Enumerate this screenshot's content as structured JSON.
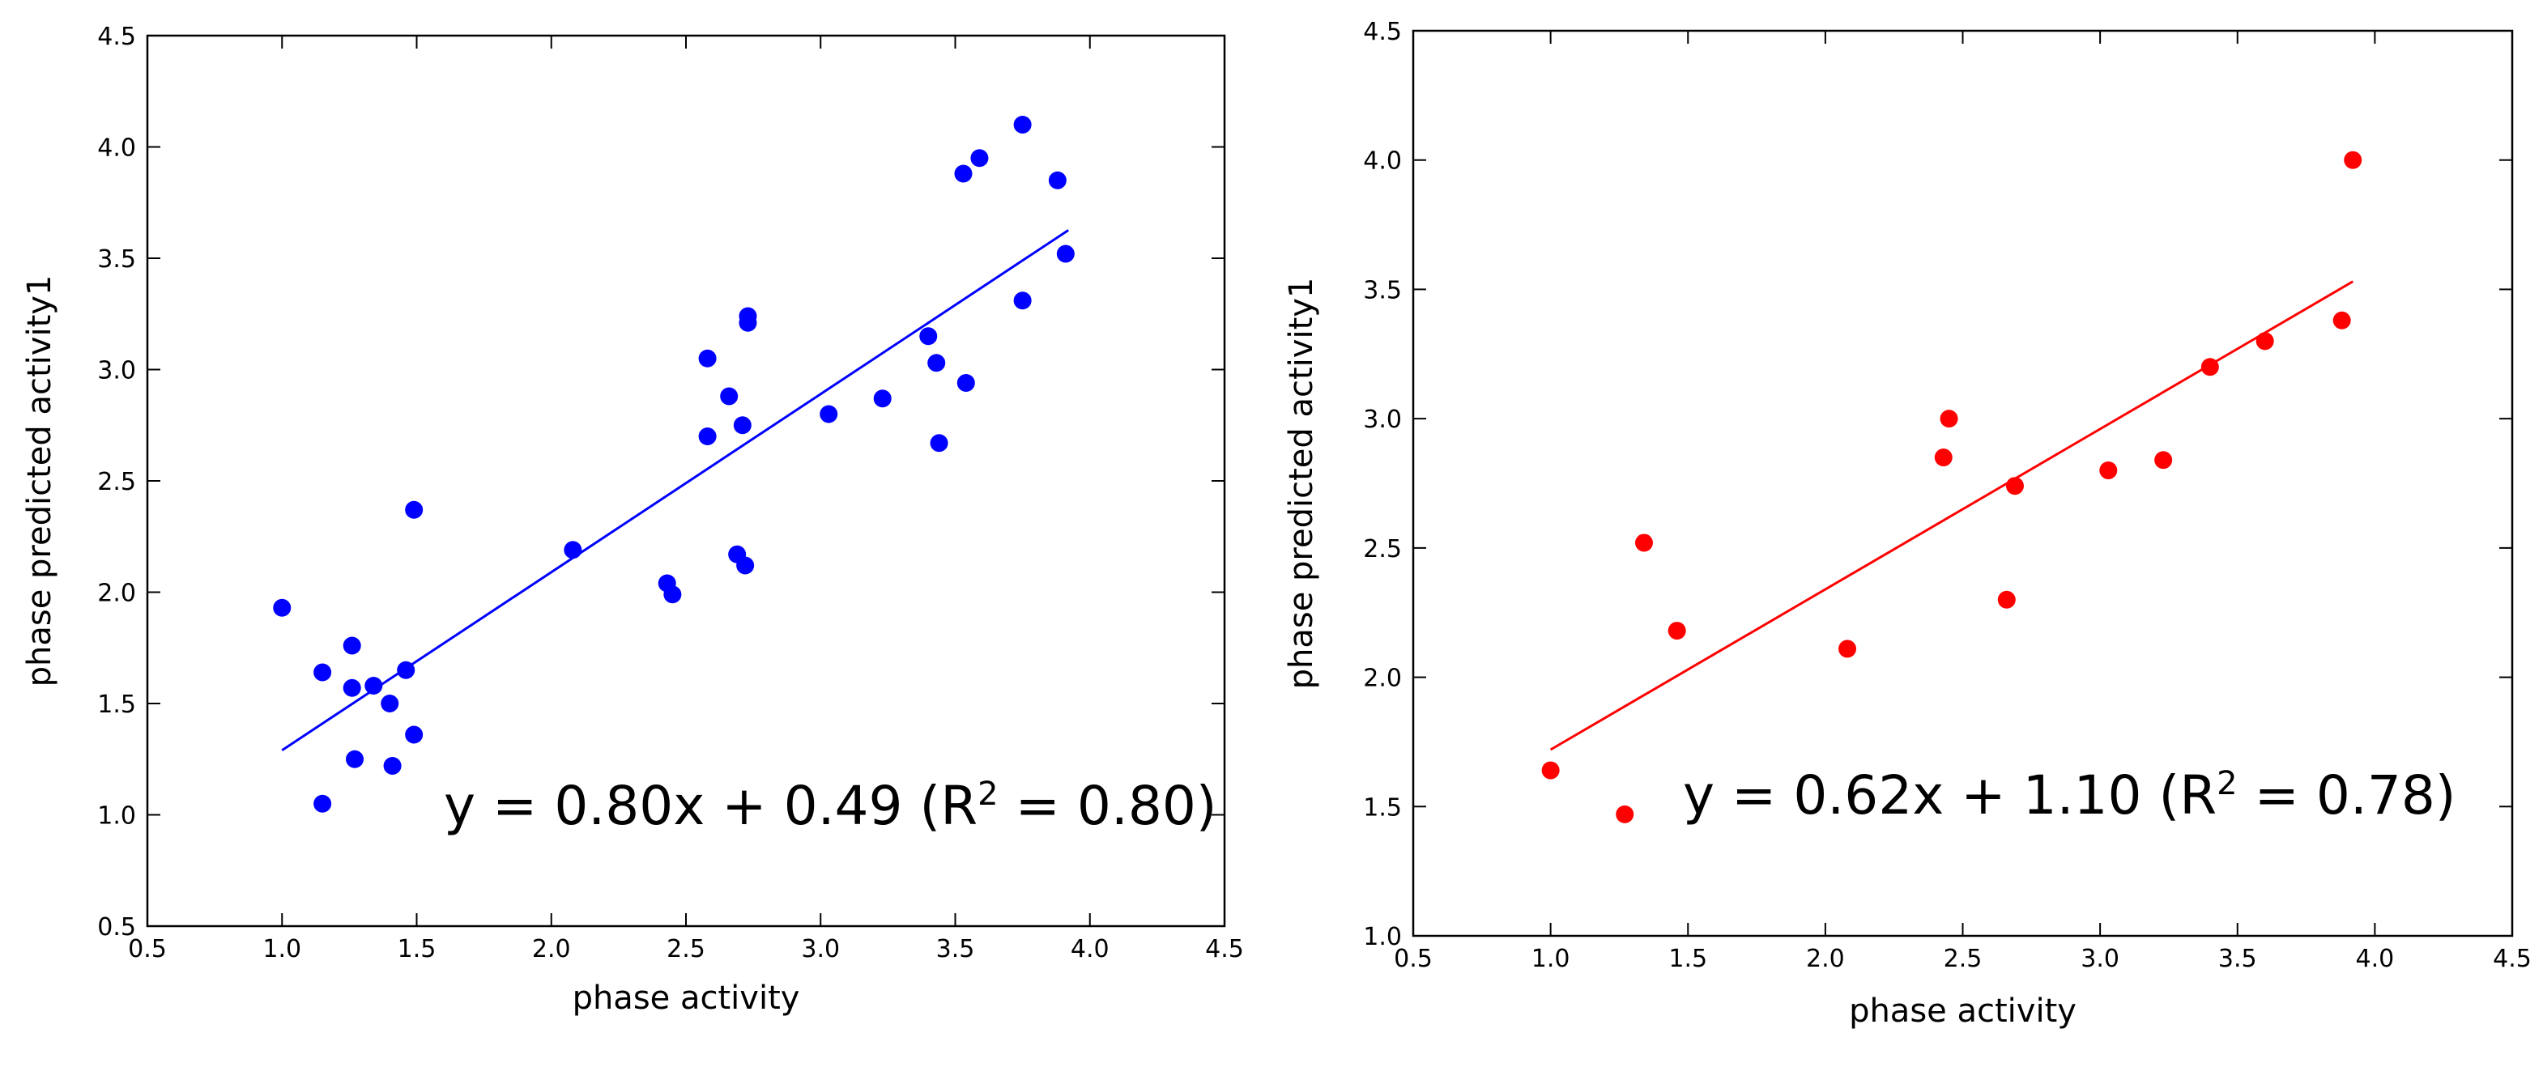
{
  "chart_data": [
    {
      "type": "scatter",
      "xlabel": "phase activity",
      "ylabel": "phase predicted activity1",
      "xlim": [
        0.5,
        4.5
      ],
      "ylim": [
        0.5,
        4.5
      ],
      "xticks": [
        "0.5",
        "1.0",
        "1.5",
        "2.0",
        "2.5",
        "3.0",
        "3.5",
        "4.0",
        "4.5"
      ],
      "yticks": [
        "0.5",
        "1.0",
        "1.5",
        "2.0",
        "2.5",
        "3.0",
        "3.5",
        "4.0",
        "4.5"
      ],
      "color": "#0000ff",
      "points": [
        [
          1.0,
          1.93
        ],
        [
          1.15,
          1.64
        ],
        [
          1.15,
          1.05
        ],
        [
          1.26,
          1.76
        ],
        [
          1.26,
          1.57
        ],
        [
          1.27,
          1.25
        ],
        [
          1.34,
          1.58
        ],
        [
          1.4,
          1.5
        ],
        [
          1.41,
          1.22
        ],
        [
          1.46,
          1.65
        ],
        [
          1.49,
          1.36
        ],
        [
          1.49,
          2.37
        ],
        [
          2.08,
          2.19
        ],
        [
          2.43,
          2.04
        ],
        [
          2.45,
          1.99
        ],
        [
          2.58,
          3.05
        ],
        [
          2.58,
          2.7
        ],
        [
          2.66,
          2.88
        ],
        [
          2.69,
          2.17
        ],
        [
          2.71,
          2.75
        ],
        [
          2.72,
          2.12
        ],
        [
          2.73,
          3.21
        ],
        [
          2.73,
          3.24
        ],
        [
          3.03,
          2.8
        ],
        [
          3.23,
          2.87
        ],
        [
          3.4,
          3.15
        ],
        [
          3.43,
          3.03
        ],
        [
          3.44,
          2.67
        ],
        [
          3.53,
          3.88
        ],
        [
          3.54,
          2.94
        ],
        [
          3.59,
          3.95
        ],
        [
          3.75,
          4.1
        ],
        [
          3.75,
          3.31
        ],
        [
          3.88,
          3.85
        ],
        [
          3.91,
          3.52
        ]
      ],
      "fit": {
        "slope": 0.8,
        "intercept": 0.49,
        "x_range": [
          1.0,
          3.92
        ]
      },
      "equation": {
        "prefix": "y = 0.80x + 0.49 (R",
        "sup": "2",
        "suffix": " = 0.80)"
      }
    },
    {
      "type": "scatter",
      "xlabel": "phase activity",
      "ylabel": "phase predicted activity1",
      "xlim": [
        0.5,
        4.5
      ],
      "ylim": [
        1.0,
        4.5
      ],
      "xticks": [
        "0.5",
        "1.0",
        "1.5",
        "2.0",
        "2.5",
        "3.0",
        "3.5",
        "4.0",
        "4.5"
      ],
      "yticks": [
        "1.0",
        "1.5",
        "2.0",
        "2.5",
        "3.0",
        "3.5",
        "4.0",
        "4.5"
      ],
      "color": "#ff0000",
      "points": [
        [
          1.0,
          1.64
        ],
        [
          1.27,
          1.47
        ],
        [
          1.34,
          2.52
        ],
        [
          1.46,
          2.18
        ],
        [
          2.08,
          2.11
        ],
        [
          2.43,
          2.85
        ],
        [
          2.45,
          3.0
        ],
        [
          2.66,
          2.3
        ],
        [
          2.69,
          2.74
        ],
        [
          3.03,
          2.8
        ],
        [
          3.23,
          2.84
        ],
        [
          3.4,
          3.2
        ],
        [
          3.6,
          3.3
        ],
        [
          3.88,
          3.38
        ],
        [
          3.92,
          4.0
        ]
      ],
      "fit": {
        "slope": 0.62,
        "intercept": 1.1,
        "x_range": [
          1.0,
          3.92
        ]
      },
      "equation": {
        "prefix": "y = 0.62x + 1.10 (R",
        "sup": "2",
        "suffix": " = 0.78)"
      }
    }
  ]
}
